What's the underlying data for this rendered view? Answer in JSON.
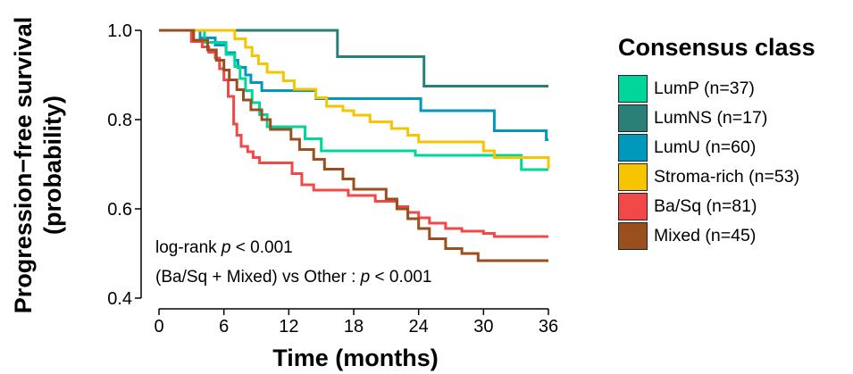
{
  "chart_data": {
    "type": "line",
    "subtype": "kaplan-meier step curves",
    "xlabel": "Time (months)",
    "ylabel_lines": [
      "Progression−free survival",
      "(probability)"
    ],
    "xlim": [
      0,
      36
    ],
    "ylim": [
      0.4,
      1.0
    ],
    "xticks": [
      0,
      6,
      12,
      18,
      24,
      30,
      36
    ],
    "yticks": [
      0.4,
      0.6,
      0.8,
      1.0
    ],
    "xtick_labels": [
      "0",
      "6",
      "12",
      "18",
      "24",
      "30",
      "36"
    ],
    "ytick_labels": [
      "0.4",
      "0.6",
      "0.8",
      "1.0"
    ],
    "grid": false,
    "legend": {
      "title": "Consensus class",
      "placement": "right",
      "entries": [
        {
          "label": "LumP (n=37)",
          "color": "#00d69a"
        },
        {
          "label": "LumNS (n=17)",
          "color": "#2a7f77"
        },
        {
          "label": "LumU (n=60)",
          "color": "#0099bb"
        },
        {
          "label": "Stroma-rich (n=53)",
          "color": "#f6c500"
        },
        {
          "label": "Ba/Sq (n=81)",
          "color": "#f24848"
        },
        {
          "label": "Mixed (n=45)",
          "color": "#9a4f1f"
        }
      ]
    },
    "annotations": {
      "line1_prefix": "log-rank ",
      "line1_italic": "p",
      "line1_suffix": " < 0.001",
      "line2_prefix": "(Ba/Sq + Mixed) vs Other : ",
      "line2_italic": "p",
      "line2_suffix": " < 0.001"
    },
    "series": [
      {
        "name": "LumNS (n=17)",
        "color": "#2a7f77",
        "x": [
          0,
          16.5,
          24.5,
          36
        ],
        "y": [
          1.0,
          0.941,
          0.875,
          0.875
        ]
      },
      {
        "name": "LumU (n=60)",
        "color": "#0099bb",
        "x": [
          0,
          3.8,
          5.2,
          6.2,
          7.0,
          7.3,
          8.0,
          8.5,
          9.5,
          12.5,
          14.5,
          24.2,
          31.0,
          35.8,
          36
        ],
        "y": [
          1.0,
          0.983,
          0.967,
          0.95,
          0.933,
          0.917,
          0.9,
          0.883,
          0.865,
          0.865,
          0.847,
          0.82,
          0.775,
          0.755,
          0.755
        ]
      },
      {
        "name": "LumP (n=37)",
        "color": "#00d69a",
        "x": [
          0,
          4.2,
          6.2,
          7.0,
          7.5,
          8.0,
          8.6,
          9.3,
          10.0,
          11.0,
          13.5,
          15.0,
          18.0,
          23.7,
          31.5,
          33.5,
          36
        ],
        "y": [
          1.0,
          0.973,
          0.946,
          0.919,
          0.892,
          0.865,
          0.838,
          0.811,
          0.784,
          0.784,
          0.757,
          0.73,
          0.73,
          0.72,
          0.72,
          0.688,
          0.688
        ]
      },
      {
        "name": "Stroma-rich (n=53)",
        "color": "#f6c500",
        "x": [
          0,
          7.0,
          8.0,
          8.6,
          9.2,
          10.0,
          11.5,
          12.5,
          14.5,
          15.5,
          17.0,
          18.0,
          19.5,
          21.5,
          23.0,
          24.0,
          30.0,
          31.0,
          36
        ],
        "y": [
          1.0,
          0.981,
          0.962,
          0.943,
          0.925,
          0.906,
          0.887,
          0.868,
          0.849,
          0.83,
          0.82,
          0.81,
          0.795,
          0.78,
          0.765,
          0.75,
          0.73,
          0.715,
          0.69
        ]
      },
      {
        "name": "Ba/Sq (n=81)",
        "color": "#f24848",
        "x": [
          0,
          3.0,
          4.0,
          4.6,
          5.2,
          5.6,
          6.0,
          6.4,
          6.9,
          7.2,
          7.6,
          8.2,
          8.7,
          9.3,
          12.3,
          13.2,
          14.3,
          17.5,
          20.0,
          22.0,
          23.0,
          24.0,
          25.0,
          26.5,
          28.0,
          30.0,
          31.0,
          36
        ],
        "y": [
          1.0,
          0.975,
          0.963,
          0.951,
          0.938,
          0.914,
          0.889,
          0.852,
          0.79,
          0.765,
          0.74,
          0.728,
          0.715,
          0.703,
          0.679,
          0.654,
          0.642,
          0.63,
          0.617,
          0.605,
          0.592,
          0.58,
          0.568,
          0.556,
          0.55,
          0.545,
          0.538,
          0.538
        ]
      },
      {
        "name": "Mixed (n=45)",
        "color": "#9a4f1f",
        "x": [
          0,
          3.2,
          4.5,
          5.3,
          6.0,
          6.5,
          7.2,
          7.8,
          8.5,
          9.5,
          10.3,
          12.2,
          13.0,
          14.3,
          15.3,
          17.0,
          18.0,
          21.0,
          22.0,
          23.0,
          24.0,
          25.0,
          26.5,
          28.0,
          29.5,
          36
        ],
        "y": [
          1.0,
          0.978,
          0.956,
          0.933,
          0.911,
          0.889,
          0.867,
          0.844,
          0.822,
          0.8,
          0.778,
          0.756,
          0.733,
          0.711,
          0.689,
          0.667,
          0.644,
          0.622,
          0.6,
          0.578,
          0.556,
          0.533,
          0.511,
          0.5,
          0.484,
          0.484
        ]
      }
    ]
  }
}
